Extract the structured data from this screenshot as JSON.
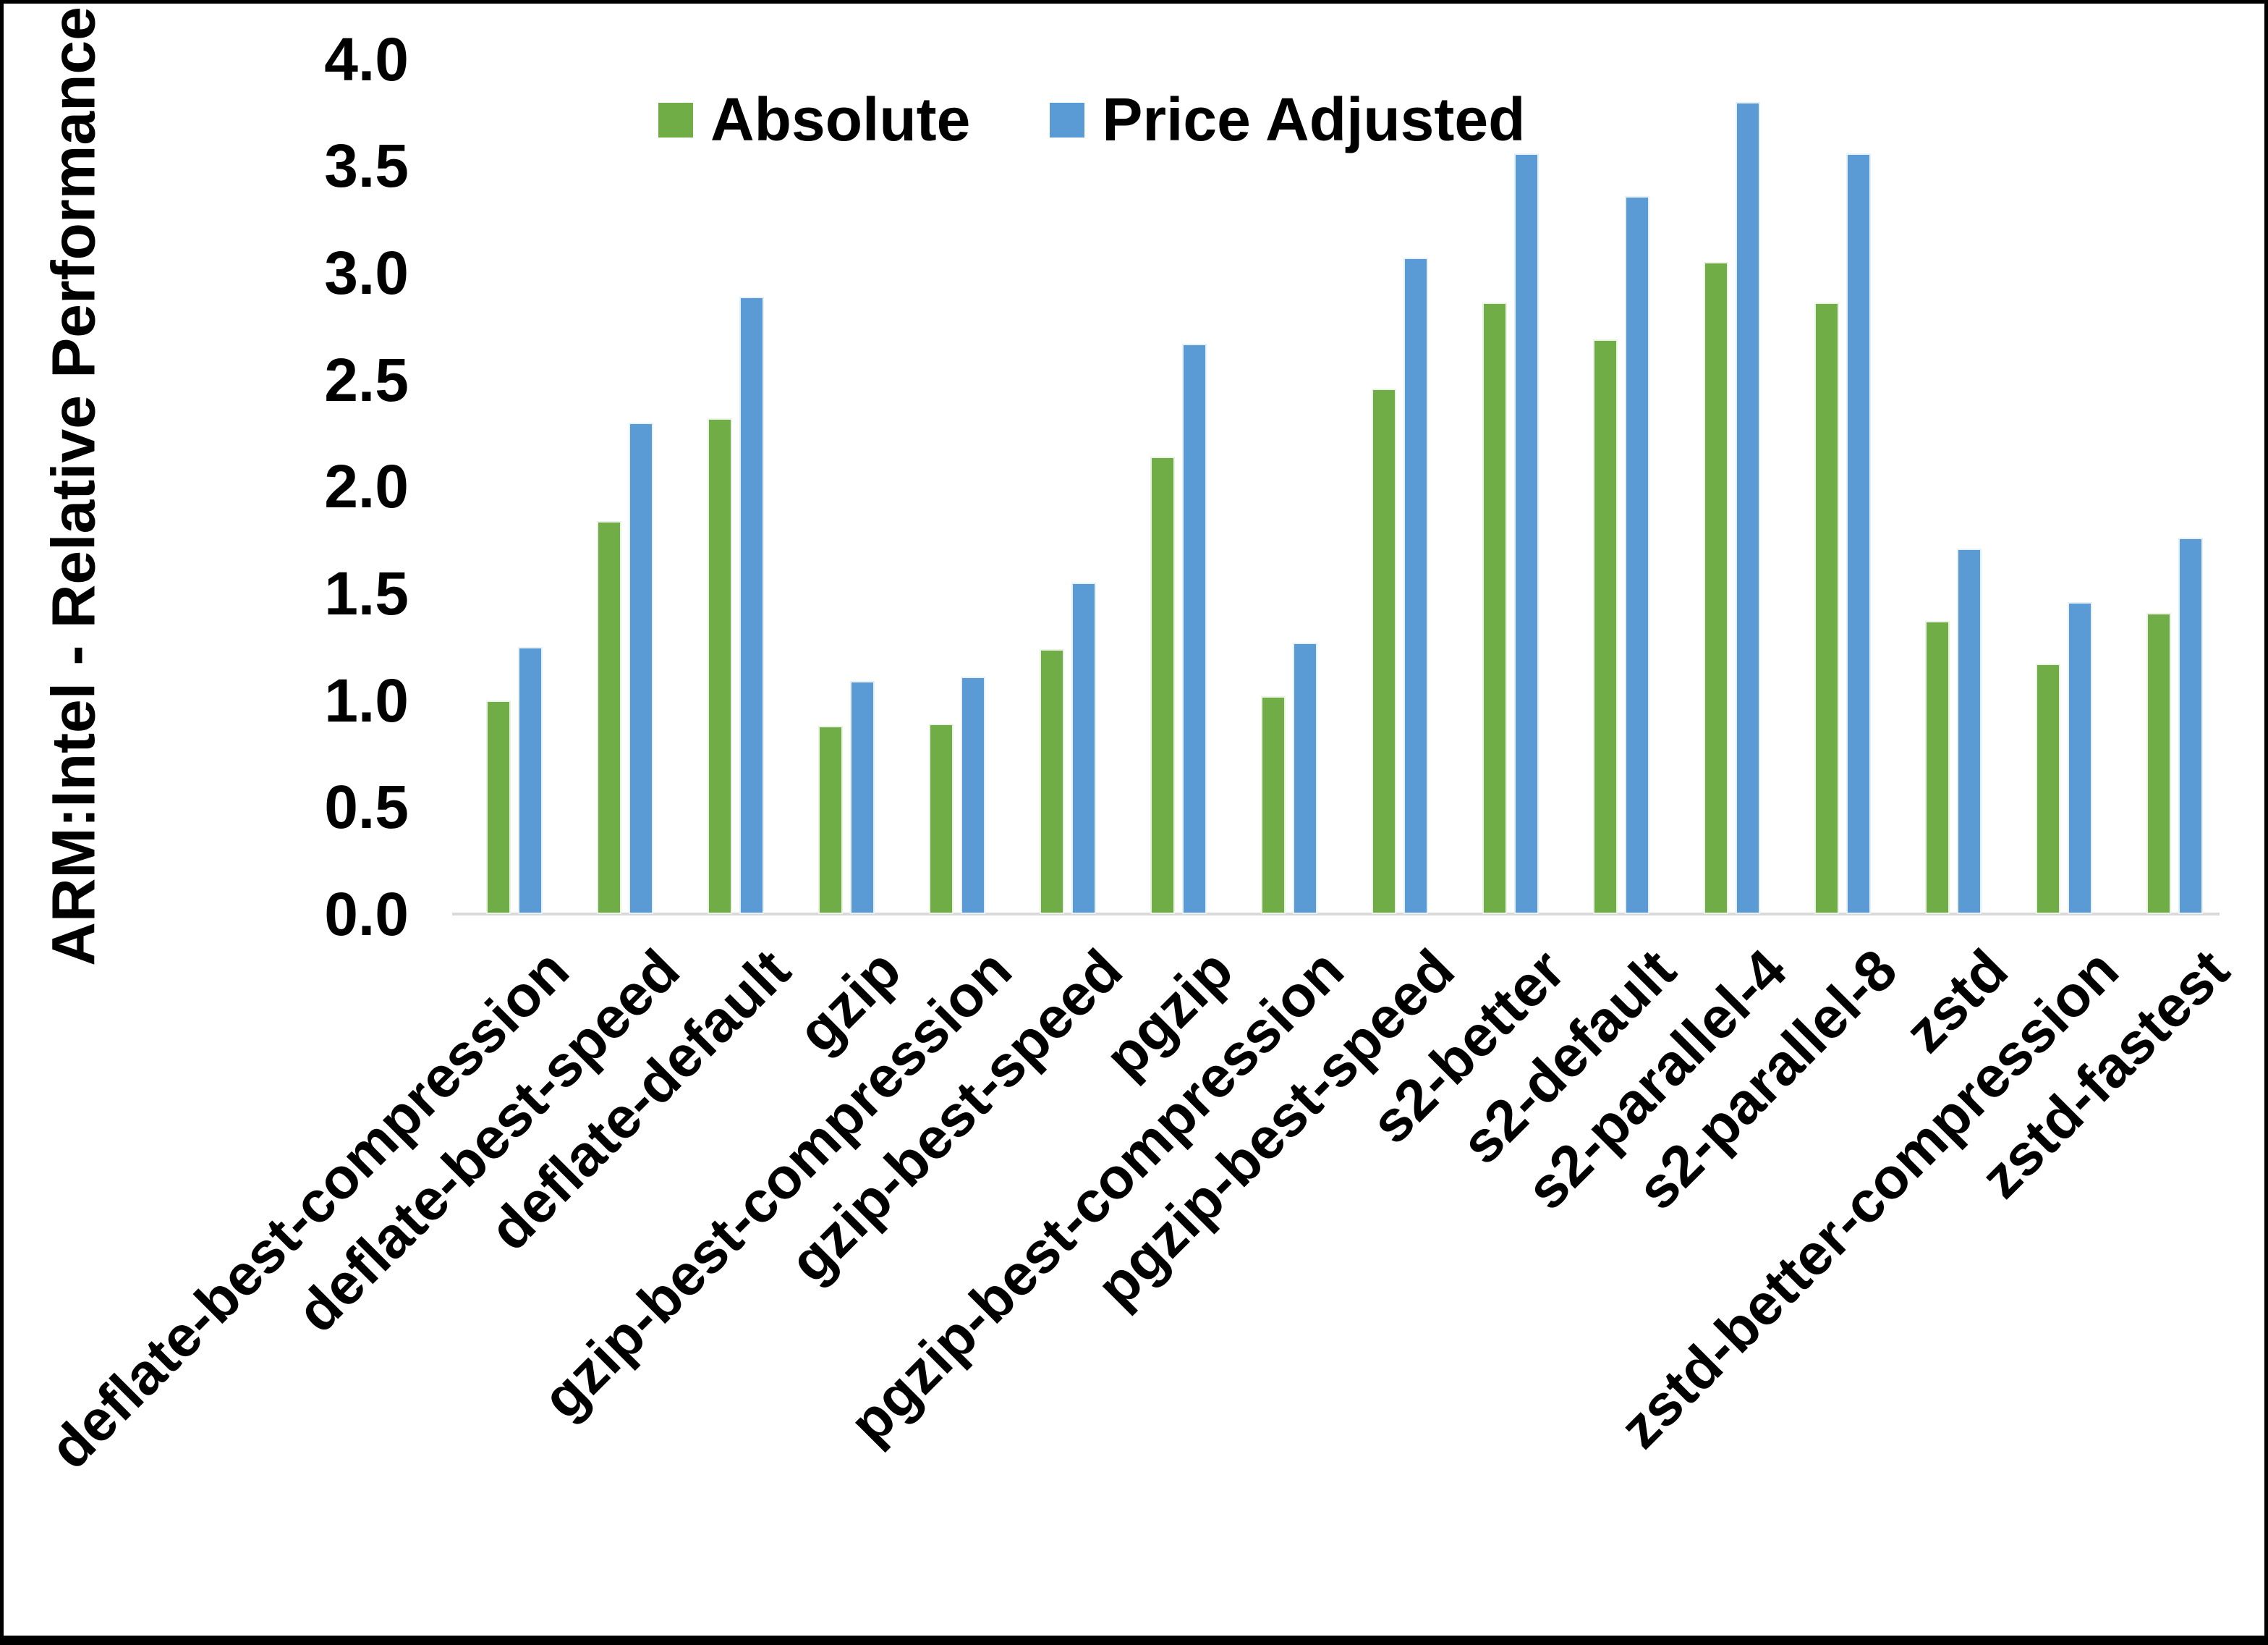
{
  "legend": {
    "items": [
      {
        "label": "Absolute",
        "color": "#70AD47"
      },
      {
        "label": "Price Adjusted",
        "color": "#5B9BD5"
      }
    ]
  },
  "chart_data": {
    "type": "bar",
    "title": "",
    "xlabel": "",
    "ylabel": "ARM:Intel - Relative Performance",
    "ylim": [
      0.0,
      4.0
    ],
    "ytick_step": 0.5,
    "yticks": [
      "0.0",
      "0.5",
      "1.0",
      "1.5",
      "2.0",
      "2.5",
      "3.0",
      "3.5",
      "4.0"
    ],
    "grid": false,
    "legend_position": "top",
    "categories": [
      "deflate-best-compression",
      "deflate-best-speed",
      "deflate-default",
      "gzip",
      "gzip-best-compression",
      "gzip-best-speed",
      "pgzip",
      "pgzip-best-compression",
      "pgzip-best-speed",
      "s2-better",
      "s2-default",
      "s2-parallel-4",
      "s2-parallel-8",
      "zstd",
      "zstd-better-compression",
      "zstd-fastest"
    ],
    "series": [
      {
        "name": "Absolute",
        "color": "#70AD47",
        "values": [
          1.0,
          1.84,
          2.32,
          0.88,
          0.89,
          1.24,
          2.14,
          1.02,
          2.46,
          2.86,
          2.69,
          3.05,
          2.86,
          1.37,
          1.17,
          1.41
        ]
      },
      {
        "name": "Price Adjusted",
        "color": "#5B9BD5",
        "values": [
          1.25,
          2.3,
          2.89,
          1.09,
          1.11,
          1.55,
          2.67,
          1.27,
          3.07,
          3.56,
          3.36,
          3.8,
          3.56,
          1.71,
          1.46,
          1.76
        ]
      }
    ]
  }
}
